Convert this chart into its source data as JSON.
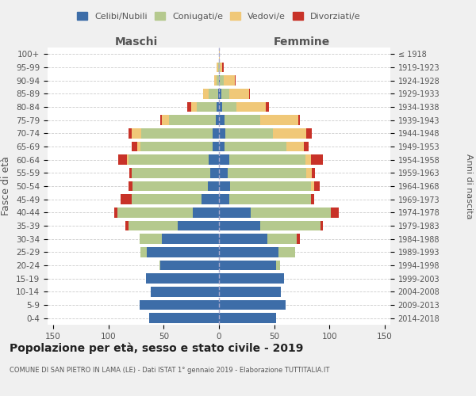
{
  "age_groups": [
    "0-4",
    "5-9",
    "10-14",
    "15-19",
    "20-24",
    "25-29",
    "30-34",
    "35-39",
    "40-44",
    "45-49",
    "50-54",
    "55-59",
    "60-64",
    "65-69",
    "70-74",
    "75-79",
    "80-84",
    "85-89",
    "90-94",
    "95-99",
    "100+"
  ],
  "birth_years": [
    "2014-2018",
    "2009-2013",
    "2004-2008",
    "1999-2003",
    "1994-1998",
    "1989-1993",
    "1984-1988",
    "1979-1983",
    "1974-1978",
    "1969-1973",
    "1964-1968",
    "1959-1963",
    "1954-1958",
    "1949-1953",
    "1944-1948",
    "1939-1943",
    "1934-1938",
    "1929-1933",
    "1924-1928",
    "1919-1923",
    "≤ 1918"
  ],
  "colors": {
    "celibe": "#3d6da8",
    "coniugato": "#b5c98e",
    "vedovo": "#f0c878",
    "divorziato": "#c83228"
  },
  "maschi": {
    "celibe": [
      63,
      72,
      62,
      66,
      53,
      65,
      52,
      37,
      24,
      16,
      10,
      8,
      9,
      6,
      6,
      3,
      2,
      1,
      0,
      0,
      0
    ],
    "coniugato": [
      0,
      0,
      0,
      0,
      1,
      6,
      20,
      45,
      68,
      63,
      68,
      71,
      73,
      65,
      64,
      42,
      18,
      8,
      2,
      1,
      0
    ],
    "vedovo": [
      0,
      0,
      0,
      0,
      0,
      0,
      0,
      0,
      0,
      0,
      0,
      0,
      1,
      3,
      9,
      7,
      5,
      5,
      2,
      1,
      0
    ],
    "divorziato": [
      0,
      0,
      0,
      0,
      0,
      0,
      0,
      3,
      3,
      10,
      4,
      2,
      8,
      5,
      3,
      1,
      4,
      0,
      0,
      0,
      0
    ]
  },
  "femmine": {
    "celibe": [
      52,
      60,
      56,
      59,
      52,
      54,
      44,
      37,
      29,
      9,
      10,
      8,
      9,
      5,
      6,
      5,
      3,
      2,
      1,
      0,
      0
    ],
    "coniugato": [
      0,
      0,
      0,
      0,
      3,
      15,
      26,
      55,
      72,
      74,
      73,
      71,
      69,
      56,
      43,
      32,
      13,
      7,
      3,
      1,
      0
    ],
    "vedovo": [
      0,
      0,
      0,
      0,
      0,
      0,
      0,
      0,
      0,
      0,
      3,
      5,
      5,
      16,
      30,
      35,
      26,
      18,
      10,
      2,
      1
    ],
    "divorziato": [
      0,
      0,
      0,
      0,
      0,
      0,
      3,
      2,
      7,
      3,
      5,
      3,
      11,
      4,
      5,
      1,
      3,
      1,
      1,
      1,
      0
    ]
  },
  "xlim": 155,
  "title": "Popolazione per età, sesso e stato civile - 2019",
  "subtitle": "COMUNE DI SAN PIETRO IN LAMA (LE) - Dati ISTAT 1° gennaio 2019 - Elaborazione TUTTITALIA.IT",
  "ylabel": "Fasce di età",
  "ylabel2": "Anni di nascita",
  "maschi_label": "Maschi",
  "femmine_label": "Femmine",
  "legend_labels": [
    "Celibi/Nubili",
    "Coniugati/e",
    "Vedovi/e",
    "Divorziati/e"
  ],
  "bg_color": "#f0f0f0",
  "plot_bg_color": "#ffffff",
  "grid_color": "#cccccc",
  "text_color": "#555555"
}
